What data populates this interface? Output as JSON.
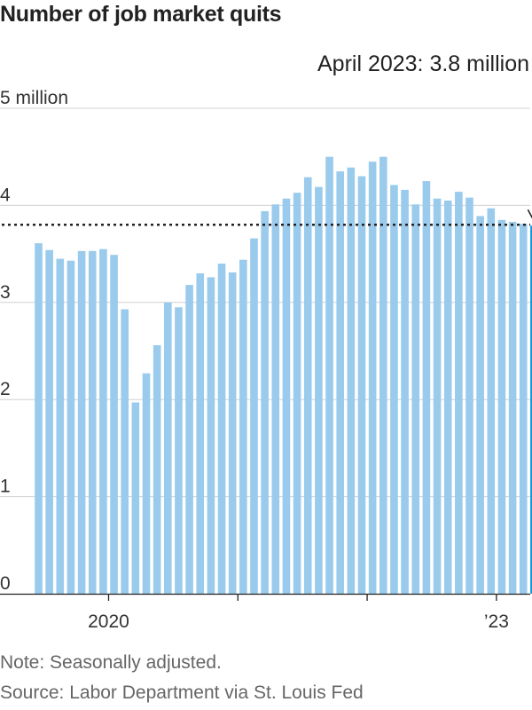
{
  "chart_data": {
    "type": "bar",
    "title": "Number of job market quits",
    "unit_label": "million",
    "ylim": [
      0,
      5
    ],
    "yticks": [
      0,
      1,
      2,
      3,
      4,
      5
    ],
    "ytick_labels": [
      "0",
      "1",
      "2",
      "3",
      "4",
      "5 million"
    ],
    "grid": true,
    "x": [
      "2019-06",
      "2019-07",
      "2019-08",
      "2019-09",
      "2019-10",
      "2019-11",
      "2019-12",
      "2020-01",
      "2020-02",
      "2020-03",
      "2020-04",
      "2020-05",
      "2020-06",
      "2020-07",
      "2020-08",
      "2020-09",
      "2020-10",
      "2020-11",
      "2020-12",
      "2021-01",
      "2021-02",
      "2021-03",
      "2021-04",
      "2021-05",
      "2021-06",
      "2021-07",
      "2021-08",
      "2021-09",
      "2021-10",
      "2021-11",
      "2021-12",
      "2022-01",
      "2022-02",
      "2022-03",
      "2022-04",
      "2022-05",
      "2022-06",
      "2022-07",
      "2022-08",
      "2022-09",
      "2022-10",
      "2022-11",
      "2022-12",
      "2023-01",
      "2023-02",
      "2023-03",
      "2023-04"
    ],
    "values": [
      3.61,
      3.54,
      3.45,
      3.43,
      3.53,
      3.53,
      3.55,
      3.49,
      2.93,
      1.97,
      2.27,
      2.56,
      3.0,
      2.95,
      3.18,
      3.3,
      3.26,
      3.4,
      3.31,
      3.44,
      3.66,
      3.94,
      4.01,
      4.07,
      4.13,
      4.29,
      4.19,
      4.5,
      4.35,
      4.39,
      4.3,
      4.45,
      4.5,
      4.21,
      4.16,
      4.01,
      4.25,
      4.07,
      4.05,
      4.14,
      4.08,
      3.89,
      3.97,
      3.85,
      3.83,
      3.81,
      3.79
    ],
    "highlight": {
      "x": "2023-04",
      "value": 3.79,
      "reference_line_value": 3.8,
      "annotation": "April 2023: 3.8 million"
    },
    "xtick_labels": [
      {
        "x": "2020-01",
        "label": "2020"
      },
      {
        "x": "2021-01",
        "label": ""
      },
      {
        "x": "2022-01",
        "label": ""
      },
      {
        "x": "2023-01",
        "label": "’23"
      }
    ],
    "colors": {
      "bar": "#9acbec",
      "highlight_bar": "#0f98d8",
      "reference_line": "#222222",
      "grid": "#d0d0d0",
      "axis": "#222222"
    }
  },
  "footer": {
    "note": "Note: Seasonally adjusted.",
    "source": "Source: Labor Department via St. Louis Fed"
  }
}
